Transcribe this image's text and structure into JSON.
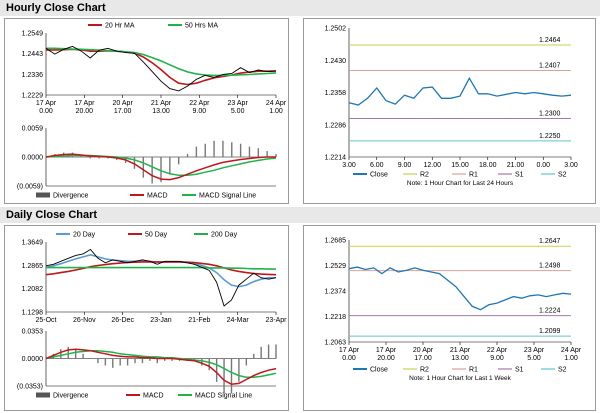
{
  "sections": {
    "hourly_title": "Hourly Close Chart",
    "daily_title": "Daily Close Chart"
  },
  "colors": {
    "price": "#000000",
    "ma_red": "#c0171b",
    "ma_green": "#20b34a",
    "ma_blue": "#5b9bd5",
    "close_blue": "#1f77b4",
    "r2": "#c9d24f",
    "r1": "#d9a29a",
    "s1": "#a678a8",
    "s2": "#60c4cf",
    "divergence": "#777777"
  },
  "chart_data": [
    {
      "id": "hourly_price",
      "type": "line",
      "legend": [
        "20 Hr MA",
        "50 Hrs MA"
      ],
      "y_ticks": [
        "1.2549",
        "1.2443",
        "1.2336",
        "1.2229"
      ],
      "ylim": [
        1.2229,
        1.2549
      ],
      "x_ticks": [
        [
          "17 Apr",
          "0.00"
        ],
        [
          "17 Apr",
          "20.00"
        ],
        [
          "20 Apr",
          "17.00"
        ],
        [
          "21 Apr",
          "13.00"
        ],
        [
          "22 Apr",
          "9.00"
        ],
        [
          "23 Apr",
          "5.00"
        ],
        [
          "24 Apr",
          "1.00"
        ]
      ],
      "series": [
        {
          "name": "Close",
          "values": [
            1.247,
            1.244,
            1.2465,
            1.248,
            1.2455,
            1.242,
            1.246,
            1.247,
            1.2455,
            1.2448,
            1.2445,
            1.24,
            1.235,
            1.23,
            1.2262,
            1.225,
            1.2275,
            1.231,
            1.233,
            1.232,
            1.2335,
            1.234,
            1.237,
            1.2345,
            1.2358,
            1.235,
            1.2352
          ]
        },
        {
          "name": "20 Hr MA",
          "values": [
            1.2462,
            1.2462,
            1.2463,
            1.2465,
            1.2462,
            1.2455,
            1.2455,
            1.2457,
            1.2455,
            1.2452,
            1.2445,
            1.2425,
            1.2395,
            1.236,
            1.232,
            1.229,
            1.2283,
            1.229,
            1.2305,
            1.2318,
            1.2325,
            1.2332,
            1.2342,
            1.2347,
            1.2352,
            1.2352,
            1.2354
          ]
        },
        {
          "name": "50 Hrs MA",
          "values": [
            1.247,
            1.247,
            1.2468,
            1.2466,
            1.2465,
            1.2463,
            1.246,
            1.2458,
            1.2455,
            1.2452,
            1.2448,
            1.2438,
            1.2422,
            1.2405,
            1.2385,
            1.2365,
            1.2348,
            1.2338,
            1.2332,
            1.233,
            1.233,
            1.2331,
            1.2333,
            1.2335,
            1.2338,
            1.234,
            1.2343
          ]
        }
      ]
    },
    {
      "id": "hourly_macd",
      "type": "line",
      "legend": [
        "Divergence",
        "MACD",
        "MACD Signal Line"
      ],
      "y_ticks": [
        "0.0059",
        "0.0000",
        "(0.0059)"
      ],
      "ylim": [
        -0.0059,
        0.0059
      ],
      "series": [
        {
          "name": "MACD",
          "values": [
            0.0,
            0.0003,
            0.0005,
            0.0006,
            0.0004,
            0.0002,
            0.0001,
            0.0,
            -0.0002,
            -0.0006,
            -0.0014,
            -0.0026,
            -0.0038,
            -0.0045,
            -0.0046,
            -0.0042,
            -0.0035,
            -0.0028,
            -0.0022,
            -0.0016,
            -0.0011,
            -0.0008,
            -0.0005,
            -0.0003,
            -0.0001,
            0.0,
            0.0
          ]
        },
        {
          "name": "MACD Signal Line",
          "values": [
            0.0,
            0.0001,
            0.0002,
            0.0003,
            0.0003,
            0.0003,
            0.0002,
            0.0001,
            0.0,
            -0.0002,
            -0.0006,
            -0.0012,
            -0.002,
            -0.0028,
            -0.0034,
            -0.0037,
            -0.0037,
            -0.0035,
            -0.0031,
            -0.0027,
            -0.0022,
            -0.0018,
            -0.0014,
            -0.001,
            -0.0007,
            -0.0004,
            -0.0002
          ]
        }
      ]
    },
    {
      "id": "hourly_pivots",
      "type": "line",
      "legend": [
        "Close",
        "R2",
        "R1",
        "S1",
        "S2"
      ],
      "note": "Note: 1 Hour Chart for Last 24 Hours",
      "y_ticks": [
        "1.2502",
        "1.2430",
        "1.2358",
        "1.2286",
        "1.2214"
      ],
      "ylim": [
        1.2214,
        1.2502
      ],
      "x_ticks": [
        "3.00",
        "6.00",
        "9.00",
        "12.00",
        "15.00",
        "18.00",
        "21.00",
        "0.00",
        "3.00"
      ],
      "levels": [
        {
          "name": "R2",
          "value": 1.2464,
          "label": "1.2464"
        },
        {
          "name": "R1",
          "value": 1.2407,
          "label": "1.2407"
        },
        {
          "name": "S1",
          "value": 1.23,
          "label": "1.2300"
        },
        {
          "name": "S2",
          "value": 1.225,
          "label": "1.2250"
        }
      ],
      "series": [
        {
          "name": "Close",
          "values": [
            1.2335,
            1.233,
            1.2345,
            1.2368,
            1.234,
            1.2332,
            1.2352,
            1.2345,
            1.2368,
            1.237,
            1.2345,
            1.2345,
            1.235,
            1.239,
            1.2355,
            1.2355,
            1.235,
            1.2354,
            1.2358,
            1.2355,
            1.2358,
            1.2355,
            1.2352,
            1.235,
            1.2352
          ]
        }
      ]
    },
    {
      "id": "daily_price",
      "type": "line",
      "legend": [
        "20 Day",
        "50 Day",
        "200 Day"
      ],
      "y_ticks": [
        "1.3649",
        "1.2865",
        "1.2082",
        "1.1298"
      ],
      "ylim": [
        1.1298,
        1.3649
      ],
      "x_ticks": [
        "25-Oct",
        "26-Nov",
        "26-Dec",
        "23-Jan",
        "21-Feb",
        "24-Mar",
        "23-Apr"
      ],
      "series": [
        {
          "name": "Close",
          "values": [
            1.285,
            1.29,
            1.3,
            1.31,
            1.32,
            1.325,
            1.34,
            1.31,
            1.295,
            1.305,
            1.3,
            1.295,
            1.3,
            1.305,
            1.3,
            1.29,
            1.3,
            1.3,
            1.3,
            1.295,
            1.29,
            1.28,
            1.27,
            1.23,
            1.15,
            1.17,
            1.22,
            1.24,
            1.26,
            1.245,
            1.24,
            1.245
          ]
        },
        {
          "name": "20 Day",
          "values": [
            1.28,
            1.285,
            1.292,
            1.3,
            1.308,
            1.315,
            1.322,
            1.315,
            1.308,
            1.304,
            1.302,
            1.3,
            1.3,
            1.301,
            1.3,
            1.297,
            1.298,
            1.298,
            1.298,
            1.296,
            1.293,
            1.286,
            1.278,
            1.262,
            1.238,
            1.22,
            1.215,
            1.22,
            1.232,
            1.24,
            1.245,
            1.245
          ]
        },
        {
          "name": "50 Day",
          "values": [
            1.255,
            1.258,
            1.262,
            1.266,
            1.271,
            1.276,
            1.282,
            1.286,
            1.289,
            1.292,
            1.294,
            1.296,
            1.297,
            1.298,
            1.298,
            1.298,
            1.298,
            1.298,
            1.298,
            1.297,
            1.296,
            1.293,
            1.29,
            1.285,
            1.278,
            1.271,
            1.266,
            1.262,
            1.259,
            1.257,
            1.256,
            1.255
          ]
        },
        {
          "name": "200 Day",
          "values": [
            1.279,
            1.279,
            1.279,
            1.279,
            1.279,
            1.279,
            1.279,
            1.279,
            1.279,
            1.279,
            1.279,
            1.279,
            1.279,
            1.279,
            1.279,
            1.279,
            1.279,
            1.279,
            1.279,
            1.279,
            1.279,
            1.279,
            1.278,
            1.278,
            1.278,
            1.277,
            1.277,
            1.276,
            1.275,
            1.275,
            1.274,
            1.274
          ]
        }
      ]
    },
    {
      "id": "daily_macd",
      "type": "line",
      "legend": [
        "Divergence",
        "MACD",
        "MACD Signal Line"
      ],
      "y_ticks": [
        "0.0353",
        "0.0000",
        "(0.0353)"
      ],
      "ylim": [
        -0.0353,
        0.0353
      ],
      "series": [
        {
          "name": "MACD",
          "values": [
            0.0,
            0.004,
            0.008,
            0.011,
            0.012,
            0.011,
            0.01,
            0.008,
            0.006,
            0.004,
            0.003,
            0.002,
            0.002,
            0.001,
            0.001,
            0.0,
            0.0,
            0.0,
            -0.001,
            -0.002,
            -0.003,
            -0.006,
            -0.01,
            -0.018,
            -0.028,
            -0.033,
            -0.032,
            -0.027,
            -0.022,
            -0.018,
            -0.015,
            -0.013
          ]
        },
        {
          "name": "MACD Signal Line",
          "values": [
            0.0,
            0.002,
            0.004,
            0.006,
            0.008,
            0.009,
            0.01,
            0.01,
            0.009,
            0.008,
            0.006,
            0.005,
            0.004,
            0.003,
            0.002,
            0.002,
            0.001,
            0.001,
            0.0,
            -0.001,
            -0.002,
            -0.003,
            -0.005,
            -0.008,
            -0.013,
            -0.018,
            -0.022,
            -0.024,
            -0.024,
            -0.023,
            -0.021,
            -0.019
          ]
        }
      ]
    },
    {
      "id": "daily_pivots",
      "type": "line",
      "legend": [
        "Close",
        "R2",
        "R1",
        "S1",
        "S2"
      ],
      "note": "Note: 1 Hour Chart for Last 1 Week",
      "y_ticks": [
        "1.2685",
        "1.2529",
        "1.2374",
        "1.2218",
        "1.2063"
      ],
      "ylim": [
        1.2063,
        1.2685
      ],
      "x_ticks": [
        [
          "17 Apr",
          "0.00"
        ],
        [
          "17 Apr",
          "20.00"
        ],
        [
          "20 Apr",
          "17.00"
        ],
        [
          "21 Apr",
          "13.00"
        ],
        [
          "22 Apr",
          "9.00"
        ],
        [
          "23 Apr",
          "5.00"
        ],
        [
          "24 Apr",
          "1.00"
        ]
      ],
      "levels": [
        {
          "name": "R2",
          "value": 1.2647,
          "label": "1.2647"
        },
        {
          "name": "R1",
          "value": 1.2498,
          "label": "1.2498"
        },
        {
          "name": "S1",
          "value": 1.2224,
          "label": "1.2224"
        },
        {
          "name": "S2",
          "value": 1.2099,
          "label": "1.2099"
        }
      ],
      "series": [
        {
          "name": "Close",
          "values": [
            1.251,
            1.252,
            1.2505,
            1.2515,
            1.248,
            1.2515,
            1.249,
            1.25,
            1.2515,
            1.25,
            1.249,
            1.248,
            1.244,
            1.24,
            1.234,
            1.228,
            1.226,
            1.229,
            1.23,
            1.232,
            1.234,
            1.233,
            1.2345,
            1.235,
            1.234,
            1.235,
            1.236,
            1.2355
          ]
        }
      ]
    }
  ]
}
